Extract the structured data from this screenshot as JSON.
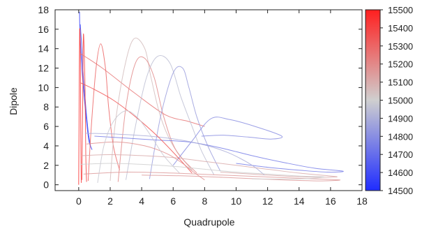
{
  "chart_data": {
    "type": "line",
    "title": "",
    "xlabel": "Quadrupole",
    "ylabel": "Dipole",
    "xlim": [
      -1.5,
      18
    ],
    "ylim": [
      -0.6,
      18
    ],
    "xticks": [
      0,
      2,
      4,
      6,
      8,
      10,
      12,
      14,
      16,
      18
    ],
    "yticks": [
      0,
      2,
      4,
      6,
      8,
      10,
      12,
      14,
      16,
      18
    ],
    "grid": false,
    "legend": "none",
    "colorbar": {
      "min": 14500,
      "max": 15500,
      "ticks": [
        14500,
        14600,
        14700,
        14800,
        14900,
        15000,
        15100,
        15200,
        15300,
        15400,
        15500
      ],
      "colors": {
        "low": "#1f2cff",
        "mid": "#cfcfcf",
        "high": "#ff1f1f"
      }
    },
    "series": [
      {
        "color_value": 14550,
        "points": [
          [
            0.05,
            17.8
          ],
          [
            0.08,
            15.5
          ],
          [
            0.2,
            12
          ],
          [
            0.35,
            9
          ],
          [
            0.5,
            6.5
          ],
          [
            0.65,
            4.5
          ],
          [
            0.85,
            3.6
          ]
        ]
      },
      {
        "color_value": 14600,
        "points": [
          [
            0.1,
            16.5
          ],
          [
            0.2,
            14
          ],
          [
            0.3,
            11
          ],
          [
            0.45,
            8
          ],
          [
            0.6,
            5.5
          ],
          [
            0.75,
            4
          ]
        ]
      },
      {
        "color_value": 15450,
        "points": [
          [
            0,
            0
          ],
          [
            0.02,
            6
          ],
          [
            0.04,
            12
          ],
          [
            0.06,
            16
          ],
          [
            0.1,
            14
          ],
          [
            0.12,
            8
          ],
          [
            0.15,
            2
          ],
          [
            0.16,
            0.2
          ]
        ]
      },
      {
        "color_value": 15400,
        "points": [
          [
            0.2,
            0.5
          ],
          [
            0.25,
            8
          ],
          [
            0.3,
            15.5
          ],
          [
            0.4,
            10
          ],
          [
            0.45,
            3
          ],
          [
            0.5,
            0.3
          ]
        ]
      },
      {
        "color_value": 15300,
        "points": [
          [
            0.6,
            0.4
          ],
          [
            0.8,
            6
          ],
          [
            1.1,
            12
          ],
          [
            1.4,
            14.5
          ],
          [
            1.7,
            12
          ],
          [
            1.9,
            8
          ],
          [
            2.2,
            4
          ],
          [
            2.6,
            1.5
          ]
        ]
      },
      {
        "color_value": 15250,
        "points": [
          [
            0.1,
            13.5
          ],
          [
            1.5,
            12
          ],
          [
            3.5,
            9.5
          ],
          [
            5.5,
            7.2
          ],
          [
            7,
            6.5
          ],
          [
            8,
            6
          ]
        ]
      },
      {
        "color_value": 15050,
        "points": [
          [
            2,
            0.4
          ],
          [
            2.3,
            6
          ],
          [
            2.9,
            12
          ],
          [
            3.5,
            15
          ],
          [
            4.2,
            14
          ],
          [
            4.6,
            11
          ],
          [
            5.2,
            7
          ],
          [
            6,
            4
          ],
          [
            7.2,
            1.5
          ]
        ]
      },
      {
        "color_value": 15200,
        "points": [
          [
            2.5,
            0.3
          ],
          [
            3,
            8
          ],
          [
            3.6,
            12.5
          ],
          [
            4.2,
            13
          ],
          [
            4.8,
            11
          ],
          [
            5.4,
            7
          ],
          [
            6.2,
            3.5
          ],
          [
            7.5,
            1.2
          ]
        ]
      },
      {
        "color_value": 14950,
        "points": [
          [
            3,
            0.5
          ],
          [
            3.6,
            6
          ],
          [
            4.3,
            11
          ],
          [
            5,
            13.2
          ],
          [
            5.8,
            12.5
          ],
          [
            6.5,
            9
          ],
          [
            7.2,
            6
          ],
          [
            7.8,
            3.5
          ],
          [
            8.6,
            1
          ]
        ]
      },
      {
        "color_value": 14850,
        "points": [
          [
            4.5,
            0.6
          ],
          [
            5.2,
            7
          ],
          [
            6,
            11.5
          ],
          [
            6.6,
            12
          ],
          [
            7,
            10
          ],
          [
            7.5,
            7
          ],
          [
            8.2,
            4
          ],
          [
            9,
            1.4
          ]
        ]
      },
      {
        "color_value": 14800,
        "points": [
          [
            6,
            2
          ],
          [
            7.2,
            4.5
          ],
          [
            8.4,
            6.8
          ],
          [
            9.6,
            6.7
          ],
          [
            11.2,
            6
          ],
          [
            12.9,
            5
          ],
          [
            12.2,
            4.7
          ],
          [
            10.8,
            4.9
          ],
          [
            9.2,
            5.1
          ],
          [
            7.8,
            5
          ]
        ]
      },
      {
        "color_value": 14750,
        "points": [
          [
            1,
            5
          ],
          [
            3,
            4.8
          ],
          [
            5,
            4.6
          ],
          [
            7,
            4.4
          ],
          [
            9,
            3.8
          ],
          [
            11,
            3
          ],
          [
            13,
            2.3
          ],
          [
            15,
            1.7
          ],
          [
            16.8,
            1.4
          ],
          [
            15.8,
            1.3
          ],
          [
            14,
            1.5
          ],
          [
            12,
            1.8
          ],
          [
            10,
            2.2
          ]
        ]
      },
      {
        "color_value": 15150,
        "points": [
          [
            0.3,
            1.1
          ],
          [
            3,
            1.3
          ],
          [
            6,
            1.2
          ],
          [
            9,
            1
          ],
          [
            12,
            0.8
          ],
          [
            15,
            0.6
          ],
          [
            16.6,
            0.5
          ],
          [
            15.5,
            0.4
          ],
          [
            13,
            0.5
          ],
          [
            10,
            0.7
          ],
          [
            7,
            0.9
          ],
          [
            4,
            1
          ]
        ]
      },
      {
        "color_value": 15100,
        "points": [
          [
            0.2,
            3
          ],
          [
            2,
            3.1
          ],
          [
            4,
            3
          ],
          [
            6,
            2.8
          ],
          [
            8,
            2.4
          ],
          [
            10,
            2
          ],
          [
            12,
            1.6
          ],
          [
            14,
            1.2
          ],
          [
            16,
            0.9
          ],
          [
            16.3,
            0.8
          ],
          [
            14.5,
            0.8
          ],
          [
            12,
            1
          ],
          [
            9,
            1.3
          ]
        ]
      },
      {
        "color_value": 14900,
        "points": [
          [
            0.4,
            5.3
          ],
          [
            2.5,
            5.2
          ],
          [
            4.5,
            5
          ],
          [
            6.5,
            4.6
          ],
          [
            8.2,
            4
          ],
          [
            9.5,
            3.3
          ],
          [
            10.5,
            2.5
          ],
          [
            11.2,
            1.8
          ],
          [
            11.8,
            1
          ]
        ]
      },
      {
        "color_value": 15350,
        "points": [
          [
            0.1,
            10.5
          ],
          [
            1,
            9.8
          ],
          [
            2.2,
            8.7
          ],
          [
            3.6,
            7
          ],
          [
            5,
            5
          ],
          [
            6.2,
            3
          ],
          [
            7.2,
            1.2
          ]
        ]
      },
      {
        "color_value": 15000,
        "points": [
          [
            0.1,
            2.1
          ],
          [
            2,
            2.2
          ],
          [
            4,
            2.1
          ],
          [
            6,
            1.9
          ],
          [
            8,
            1.6
          ],
          [
            10,
            1.3
          ],
          [
            12,
            1.1
          ],
          [
            14,
            0.9
          ],
          [
            15.6,
            0.8
          ],
          [
            14,
            0.6
          ],
          [
            11,
            0.6
          ]
        ]
      },
      {
        "color_value": 15180,
        "points": [
          [
            0.5,
            4.2
          ],
          [
            2.4,
            4.4
          ],
          [
            4.2,
            4
          ],
          [
            5.6,
            3.2
          ],
          [
            6.6,
            2.2
          ],
          [
            7.3,
            1.3
          ],
          [
            8,
            0.5
          ]
        ]
      },
      {
        "color_value": 14980,
        "points": [
          [
            1.2,
            0.2
          ],
          [
            1.6,
            4
          ],
          [
            2.2,
            6.5
          ],
          [
            3,
            7.6
          ],
          [
            3.8,
            6.8
          ],
          [
            4.6,
            5
          ],
          [
            5.4,
            3
          ],
          [
            6.4,
            1.2
          ]
        ]
      }
    ]
  }
}
